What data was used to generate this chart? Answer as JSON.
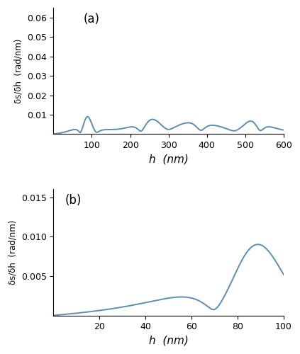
{
  "line_color": "#5b8db8",
  "line_width": 1.4,
  "background_color": "#ffffff",
  "panel_a": {
    "xlim": [
      0,
      600
    ],
    "ylim": [
      0,
      0.065
    ],
    "xlabel": "h  (nm)",
    "ylabel": "δs/δh  (rad/nm)",
    "label": "(a)",
    "xticks": [
      100,
      200,
      300,
      400,
      500,
      600
    ],
    "yticks": [
      0.01,
      0.02,
      0.03,
      0.04,
      0.05,
      0.06
    ]
  },
  "panel_b": {
    "xlim": [
      0,
      100
    ],
    "ylim": [
      0,
      0.016
    ],
    "xlabel": "h  (nm)",
    "ylabel": "δs/δh  (rad/nm)",
    "label": "(b)",
    "xticks": [
      20,
      40,
      60,
      80,
      100
    ],
    "yticks": [
      0.005,
      0.01,
      0.015
    ]
  }
}
